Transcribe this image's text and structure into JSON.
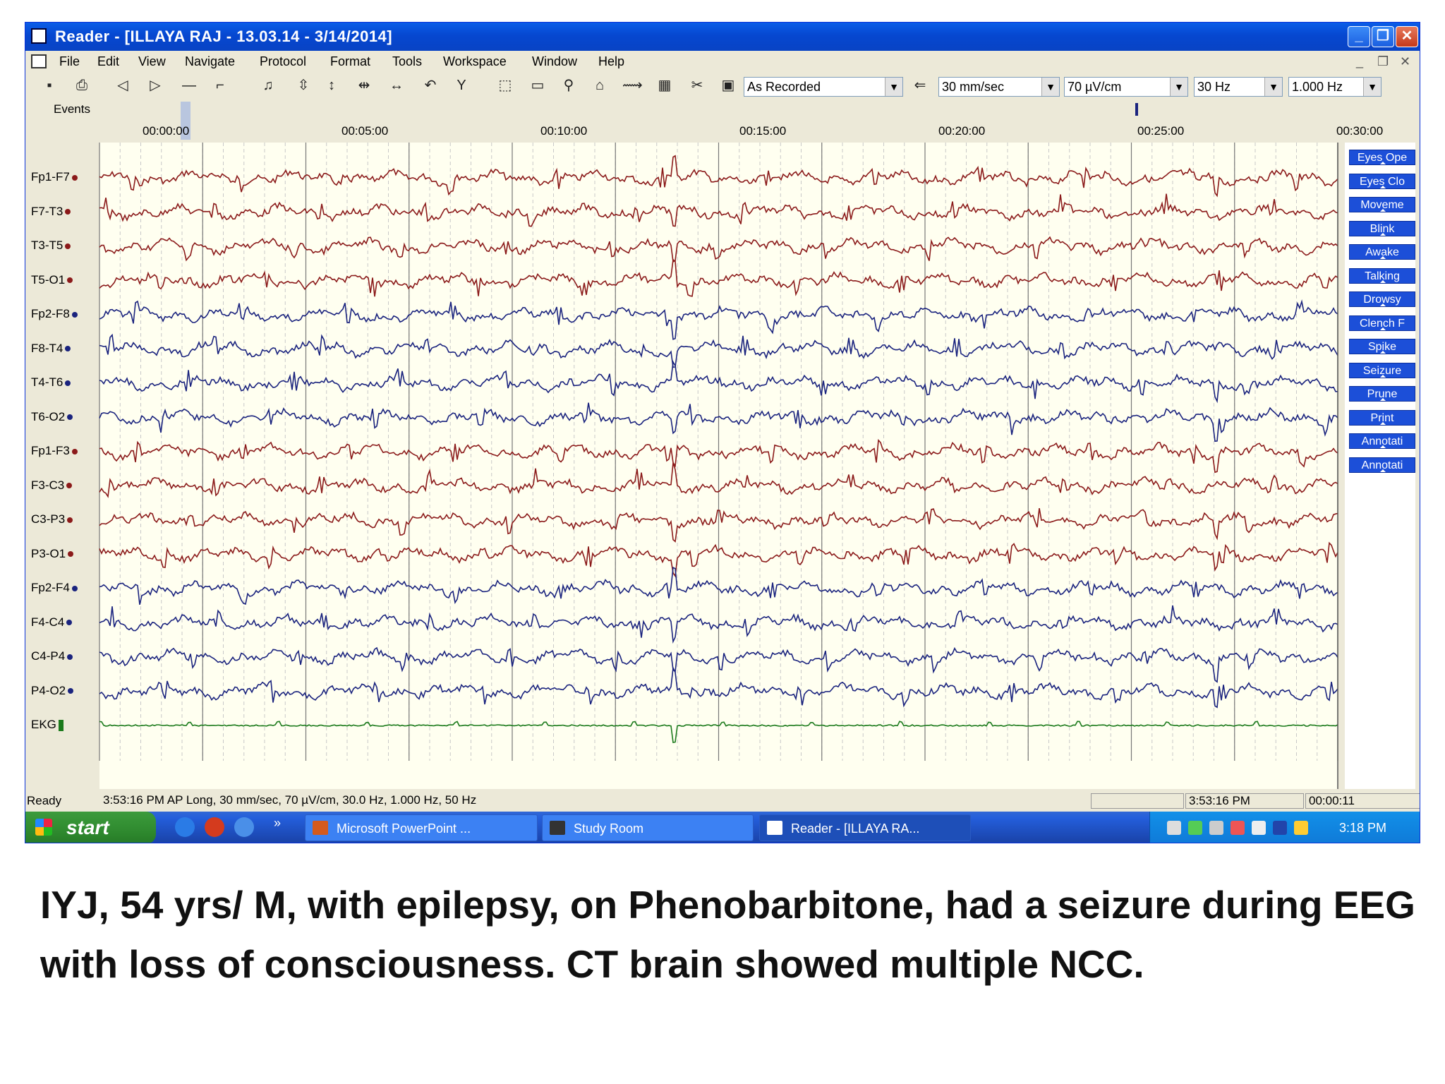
{
  "window": {
    "title": "Reader - [ILLAYA RAJ  - 13.03.14 - 3/14/2014]",
    "controls": {
      "minimize": "_",
      "maximize": "❐",
      "close": "✕"
    }
  },
  "menu": {
    "items": [
      "File",
      "Edit",
      "View",
      "Navigate",
      "Protocol",
      "Format",
      "Tools",
      "Workspace",
      "Window",
      "Help"
    ],
    "mdi_controls": [
      "_",
      "❐",
      "✕"
    ]
  },
  "toolbar": {
    "montage": "As Recorded",
    "speed": "30 mm/sec",
    "sensitivity": "70 µV/cm",
    "high_filter": "30 Hz",
    "low_filter": "1.000 Hz"
  },
  "events_label": "Events",
  "timeline": {
    "ticks": [
      "00:00:00",
      "00:05:00",
      "00:10:00",
      "00:15:00",
      "00:20:00",
      "00:25:00",
      "00:30:00"
    ]
  },
  "channels": [
    {
      "label": "Fp1-F7",
      "color": "#8b1a1a"
    },
    {
      "label": "F7-T3",
      "color": "#8b1a1a"
    },
    {
      "label": "T3-T5",
      "color": "#8b1a1a"
    },
    {
      "label": "T5-O1",
      "color": "#8b1a1a"
    },
    {
      "label": "Fp2-F8",
      "color": "#1a237e"
    },
    {
      "label": "F8-T4",
      "color": "#1a237e"
    },
    {
      "label": "T4-T6",
      "color": "#1a237e"
    },
    {
      "label": "T6-O2",
      "color": "#1a237e"
    },
    {
      "label": "Fp1-F3",
      "color": "#8b1a1a"
    },
    {
      "label": "F3-C3",
      "color": "#8b1a1a"
    },
    {
      "label": "C3-P3",
      "color": "#8b1a1a"
    },
    {
      "label": "P3-O1",
      "color": "#8b1a1a"
    },
    {
      "label": "Fp2-F4",
      "color": "#1a237e"
    },
    {
      "label": "F4-C4",
      "color": "#1a237e"
    },
    {
      "label": "C4-P4",
      "color": "#1a237e"
    },
    {
      "label": "P4-O2",
      "color": "#1a237e"
    },
    {
      "label": "EKG",
      "color": "#1b7a1b"
    }
  ],
  "trace_info": "3:53:16 PM AP Long, 30 mm/sec, 70 µV/cm, 30.0 Hz, 1.000 Hz, 50 Hz",
  "event_buttons": [
    "Eyes Ope",
    "Eyes Clo",
    "Moveme",
    "Blink",
    "Awake",
    "Talking",
    "Drowsy",
    "Clench F",
    "Spike",
    "Seizure",
    "Prune",
    "Print",
    "Annotati",
    "Annotati"
  ],
  "status": {
    "left": "Ready",
    "time": "3:53:16 PM",
    "elapsed": "00:00:11"
  },
  "taskbar": {
    "start": "start",
    "overflow": "»",
    "tasks": [
      "Microsoft PowerPoint ...",
      "Study Room",
      "Reader - [ILLAYA RA..."
    ],
    "clock": "3:18 PM"
  },
  "caption": "IYJ, 54 yrs/ M, with epilepsy, on Phenobarbitone, had a seizure during EEG with loss of consciousness. CT brain showed multiple NCC."
}
